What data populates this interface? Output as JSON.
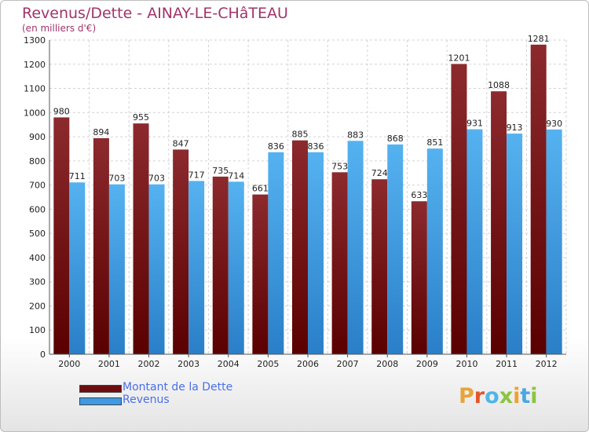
{
  "header": {
    "title": "Revenus/Dette - AINAY-LE-CHâTEAU",
    "subtitle": "(en milliers d'€)"
  },
  "colors": {
    "debt": "#6e0d10",
    "revenue": "#3f9ae3",
    "title": "#a0346a",
    "legend_text": "#4a6fe8"
  },
  "logo": {
    "text": "Proxiti",
    "letters": [
      {
        "ch": "P",
        "color": "#e8a33a"
      },
      {
        "ch": "r",
        "color": "#e2552b"
      },
      {
        "ch": "o",
        "color": "#4db6e8"
      },
      {
        "ch": "x",
        "color": "#8bc53f"
      },
      {
        "ch": "i",
        "color": "#f0a030"
      },
      {
        "ch": "t",
        "color": "#4aa8e0"
      },
      {
        "ch": "i",
        "color": "#8bc53f"
      }
    ]
  },
  "chart_data": {
    "type": "bar",
    "categories": [
      "2000",
      "2001",
      "2002",
      "2003",
      "2004",
      "2005",
      "2006",
      "2007",
      "2008",
      "2009",
      "2010",
      "2011",
      "2012"
    ],
    "series": [
      {
        "name": "Montant de la Dette",
        "color": "#6e0d10",
        "values": [
          980,
          894,
          955,
          847,
          735,
          661,
          885,
          753,
          724,
          633,
          1201,
          1088,
          1281
        ]
      },
      {
        "name": "Revenus",
        "color": "#3f9ae3",
        "values": [
          711,
          703,
          703,
          717,
          714,
          836,
          836,
          883,
          868,
          851,
          931,
          913,
          930
        ]
      }
    ],
    "ylim": [
      0,
      1300
    ],
    "yticks": [
      0,
      100,
      200,
      300,
      400,
      500,
      600,
      700,
      800,
      900,
      1000,
      1100,
      1200,
      1300
    ],
    "grid": true,
    "legend_position": "bottom-left"
  }
}
